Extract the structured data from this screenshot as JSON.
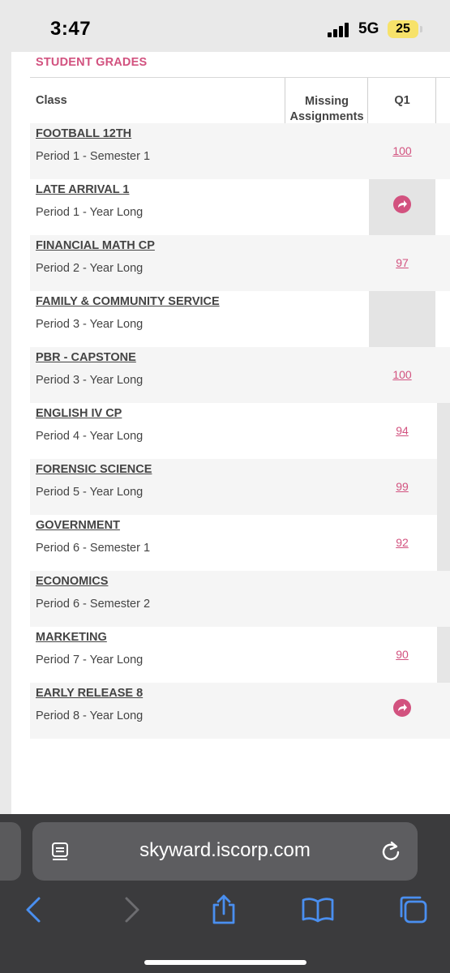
{
  "status_bar": {
    "time": "3:47",
    "network": "5G",
    "battery": "25"
  },
  "section": {
    "title": "STUDENT GRADES"
  },
  "table": {
    "headers": {
      "class": "Class",
      "missing": "Missing Assignments",
      "q1": "Q1"
    },
    "rows": [
      {
        "name": "FOOTBALL 12TH",
        "period": "Period 1 - Semester 1",
        "q1": "100",
        "icon": ""
      },
      {
        "name": "LATE ARRIVAL 1",
        "period": "Period 1 - Year Long",
        "q1": "",
        "icon": "forward-arrow-icon"
      },
      {
        "name": "FINANCIAL MATH CP",
        "period": "Period 2 - Year Long",
        "q1": "97",
        "icon": ""
      },
      {
        "name": "FAMILY & COMMUNITY SERVICE",
        "period": "Period 3 - Year Long",
        "q1": "",
        "icon": ""
      },
      {
        "name": "PBR - CAPSTONE",
        "period": "Period 3 - Year Long",
        "q1": "100",
        "icon": ""
      },
      {
        "name": "ENGLISH IV CP",
        "period": "Period 4 - Year Long",
        "q1": "94",
        "icon": ""
      },
      {
        "name": "FORENSIC SCIENCE",
        "period": "Period 5 - Year Long",
        "q1": "99",
        "icon": ""
      },
      {
        "name": "GOVERNMENT",
        "period": "Period 6 - Semester 1",
        "q1": "92",
        "icon": ""
      },
      {
        "name": "ECONOMICS",
        "period": "Period 6 - Semester 2",
        "q1": "",
        "icon": ""
      },
      {
        "name": "MARKETING",
        "period": "Period 7 - Year Long",
        "q1": "90",
        "icon": ""
      },
      {
        "name": "EARLY RELEASE 8",
        "period": "Period 8 - Year Long",
        "q1": "",
        "icon": "forward-arrow-icon"
      }
    ]
  },
  "browser": {
    "url": "skyward.iscorp.com",
    "buttons": [
      "back-icon",
      "forward-icon",
      "share-icon",
      "bookmarks-icon",
      "tabs-icon"
    ]
  },
  "colors": {
    "accent": "#d2527f",
    "browser_bg": "#3b3b3d",
    "toolbar_blue": "#4a8ff0"
  }
}
